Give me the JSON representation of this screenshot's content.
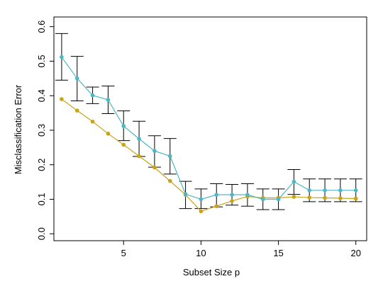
{
  "chart_data": {
    "type": "line",
    "title": "",
    "xlabel": "Subset Size p",
    "ylabel": "Misclassification Error",
    "xlim": [
      0.5,
      20.7
    ],
    "ylim": [
      -0.02,
      0.628
    ],
    "x_ticks": [
      5,
      10,
      15,
      20
    ],
    "y_ticks": [
      0.0,
      0.1,
      0.2,
      0.3,
      0.4,
      0.5,
      0.6
    ],
    "y_tick_labels": [
      "0.0",
      "0.1",
      "0.2",
      "0.3",
      "0.4",
      "0.5",
      "0.6"
    ],
    "grid": false,
    "legend": "none",
    "x": [
      1,
      2,
      3,
      4,
      5,
      6,
      7,
      8,
      9,
      10,
      11,
      12,
      13,
      14,
      15,
      16,
      17,
      18,
      19,
      20
    ],
    "series": [
      {
        "color": "#4fb6c4",
        "values": [
          0.512,
          0.45,
          0.401,
          0.388,
          0.312,
          0.275,
          0.24,
          0.225,
          0.115,
          0.1,
          0.113,
          0.113,
          0.113,
          0.1,
          0.1,
          0.151,
          0.126,
          0.126,
          0.126,
          0.126
        ],
        "error_low": [
          0.445,
          0.385,
          0.377,
          0.348,
          0.27,
          0.224,
          0.193,
          0.173,
          0.073,
          0.073,
          0.078,
          0.083,
          0.08,
          0.07,
          0.07,
          0.114,
          0.093,
          0.093,
          0.093,
          0.093
        ],
        "error_high": [
          0.58,
          0.514,
          0.425,
          0.428,
          0.356,
          0.326,
          0.284,
          0.276,
          0.152,
          0.13,
          0.145,
          0.143,
          0.145,
          0.13,
          0.13,
          0.186,
          0.159,
          0.159,
          0.159,
          0.159
        ]
      },
      {
        "color": "#c8a318",
        "values": [
          0.39,
          0.357,
          0.325,
          0.29,
          0.258,
          0.225,
          0.192,
          0.153,
          0.113,
          0.065,
          0.08,
          0.095,
          0.108,
          0.104,
          0.104,
          0.107,
          0.105,
          0.104,
          0.103,
          0.102
        ]
      }
    ]
  }
}
